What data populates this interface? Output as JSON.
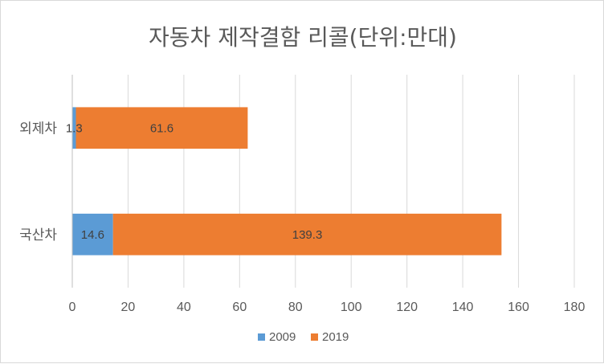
{
  "chart_data": {
    "type": "bar",
    "orientation": "horizontal",
    "stacked": true,
    "title": "자동차 제작결함 리콜(단위:만대)",
    "categories": [
      "외제차",
      "국산차"
    ],
    "series": [
      {
        "name": "2009",
        "values": [
          1.3,
          14.6
        ],
        "color": "#5b9bd5"
      },
      {
        "name": "2019",
        "values": [
          61.6,
          139.3
        ],
        "color": "#ed7d31"
      }
    ],
    "xlim": [
      0,
      180
    ],
    "xticks": [
      0,
      20,
      40,
      60,
      80,
      100,
      120,
      140,
      160,
      180
    ],
    "xlabel": "",
    "ylabel": "",
    "grid": "vertical",
    "legend_position": "bottom",
    "data_labels": true
  }
}
